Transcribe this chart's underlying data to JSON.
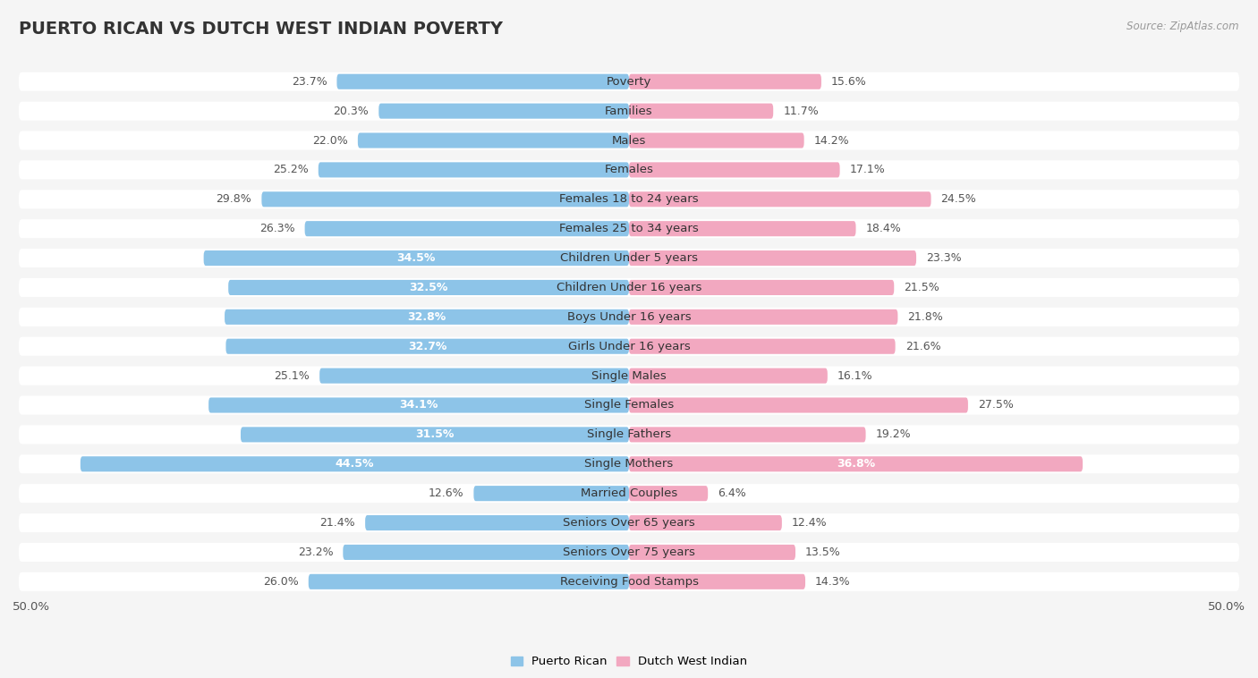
{
  "title": "PUERTO RICAN VS DUTCH WEST INDIAN POVERTY",
  "source": "Source: ZipAtlas.com",
  "categories": [
    "Poverty",
    "Families",
    "Males",
    "Females",
    "Females 18 to 24 years",
    "Females 25 to 34 years",
    "Children Under 5 years",
    "Children Under 16 years",
    "Boys Under 16 years",
    "Girls Under 16 years",
    "Single Males",
    "Single Females",
    "Single Fathers",
    "Single Mothers",
    "Married Couples",
    "Seniors Over 65 years",
    "Seniors Over 75 years",
    "Receiving Food Stamps"
  ],
  "puerto_rican": [
    23.7,
    20.3,
    22.0,
    25.2,
    29.8,
    26.3,
    34.5,
    32.5,
    32.8,
    32.7,
    25.1,
    34.1,
    31.5,
    44.5,
    12.6,
    21.4,
    23.2,
    26.0
  ],
  "dutch_west_indian": [
    15.6,
    11.7,
    14.2,
    17.1,
    24.5,
    18.4,
    23.3,
    21.5,
    21.8,
    21.6,
    16.1,
    27.5,
    19.2,
    36.8,
    6.4,
    12.4,
    13.5,
    14.3
  ],
  "puerto_rican_color": "#8DC4E8",
  "dutch_west_indian_color": "#F2A8C0",
  "xlim": 50.0,
  "background_color": "#f5f5f5",
  "row_bg_color": "#e8e8e8",
  "bar_bg_color": "#ffffff",
  "title_fontsize": 14,
  "label_fontsize": 9.5,
  "value_fontsize": 9
}
